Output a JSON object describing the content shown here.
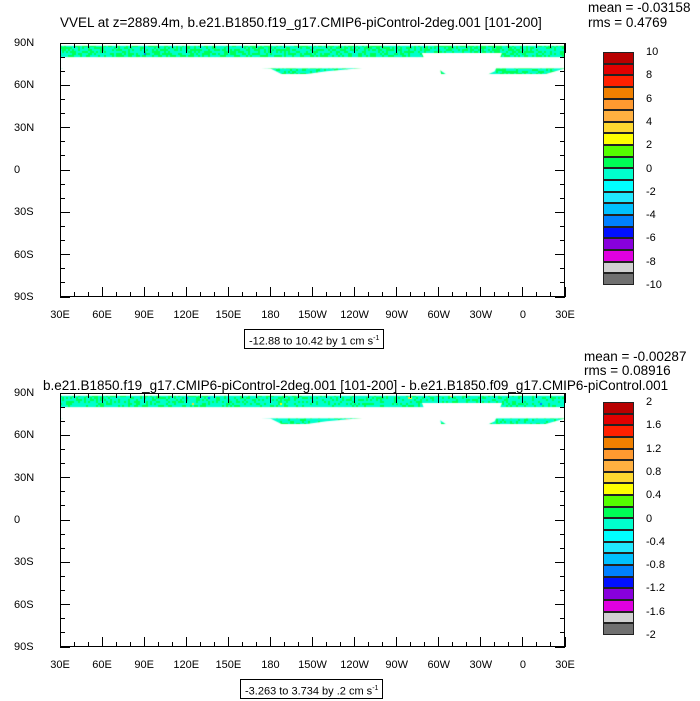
{
  "colors": [
    "#b80000",
    "#e00000",
    "#ff2000",
    "#f08000",
    "#ff9a30",
    "#ffb040",
    "#ffd830",
    "#ffff00",
    "#55ff00",
    "#00ff55",
    "#00ffcc",
    "#00ffff",
    "#20e8ff",
    "#00c0ff",
    "#0080ff",
    "#0010ff",
    "#8800dd",
    "#e000e0",
    "#d0d0d0",
    "#707070"
  ],
  "lon_labels": [
    "30E",
    "60E",
    "90E",
    "120E",
    "150E",
    "180",
    "150W",
    "120W",
    "90W",
    "60W",
    "30W",
    "0",
    "30E"
  ],
  "lat_labels": [
    "90N",
    "60N",
    "30N",
    "0",
    "30S",
    "60S",
    "90S"
  ],
  "plots": [
    {
      "title": "VVEL at z=2889.4m, b.e21.B1850.f19_g17.CMIP6-piControl-2deg.001 [101-200]",
      "mean": "mean = -0.03158",
      "rms": "rms = 0.4769",
      "info": "-12.88 to 10.42 by 1 cm s",
      "info_sup": "-1",
      "colorbar_labels": [
        "10",
        "8",
        "6",
        "4",
        "2",
        "0",
        "-2",
        "-4",
        "-6",
        "-8",
        "-10"
      ]
    },
    {
      "title": "b.e21.B1850.f19_g17.CMIP6-piControl-2deg.001 [101-200] - b.e21.B1850.f09_g17.CMIP6-piControl.001",
      "mean": "mean = -0.00287",
      "rms": "rms = 0.08916",
      "info": "-3.263 to 3.734 by .2 cm s",
      "info_sup": "-1",
      "colorbar_labels": [
        "2",
        "1.6",
        "1.2",
        "0.8",
        "0.4",
        "0",
        "-0.4",
        "-0.8",
        "-1.2",
        "-1.6",
        "-2"
      ]
    }
  ]
}
